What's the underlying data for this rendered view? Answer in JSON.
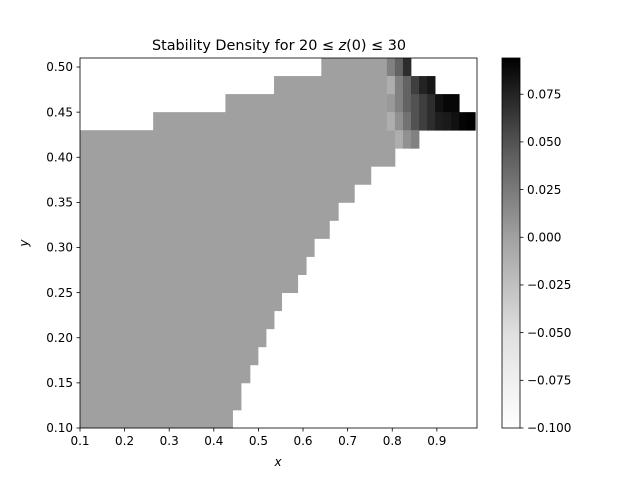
{
  "chart_data": {
    "type": "heatmap",
    "title": "Stability Density for 20 ≤ z(0) ≤ 30",
    "title_parts": {
      "prefix": "Stability Density for 20 ≤ ",
      "var": "z",
      "suffix": "(0) ≤ 30"
    },
    "xlabel": "x",
    "ylabel": "y",
    "xlim": [
      0.1,
      0.99
    ],
    "ylim": [
      0.1,
      0.51
    ],
    "xticks": [
      0.1,
      0.2,
      0.3,
      0.4,
      0.5,
      0.6,
      0.7,
      0.8,
      0.9
    ],
    "xtick_labels": [
      "0.1",
      "0.2",
      "0.3",
      "0.4",
      "0.5",
      "0.6",
      "0.7",
      "0.8",
      "0.9"
    ],
    "yticks": [
      0.1,
      0.15,
      0.2,
      0.25,
      0.3,
      0.35,
      0.4,
      0.45,
      0.5
    ],
    "ytick_labels": [
      "0.10",
      "0.15",
      "0.20",
      "0.25",
      "0.30",
      "0.35",
      "0.40",
      "0.45",
      "0.50"
    ],
    "colormap": "Greys",
    "color_range": [
      -0.1,
      0.094
    ],
    "colorbar_ticks": [
      -0.1,
      -0.075,
      -0.05,
      -0.025,
      0.0,
      0.025,
      0.05,
      0.075
    ],
    "colorbar_tick_labels": [
      "−0.100",
      "−0.075",
      "−0.050",
      "−0.025",
      "0.000",
      "0.025",
      "0.050",
      "0.075"
    ],
    "grid": false,
    "base_region": {
      "value": 0.0,
      "y_rows": [
        0.1,
        0.11,
        0.12,
        0.13,
        0.14,
        0.15,
        0.16,
        0.17,
        0.18,
        0.19,
        0.2,
        0.21,
        0.22,
        0.23,
        0.24,
        0.25,
        0.26,
        0.27,
        0.28,
        0.29,
        0.3,
        0.31,
        0.32,
        0.33,
        0.34,
        0.35,
        0.36,
        0.37,
        0.38,
        0.39,
        0.4,
        0.41,
        0.42,
        0.43,
        0.44,
        0.45,
        0.46,
        0.47,
        0.48,
        0.49,
        0.5
      ],
      "x_start": [
        0.1,
        0.1,
        0.1,
        0.1,
        0.1,
        0.1,
        0.1,
        0.1,
        0.1,
        0.1,
        0.1,
        0.1,
        0.1,
        0.1,
        0.1,
        0.1,
        0.1,
        0.1,
        0.1,
        0.1,
        0.1,
        0.1,
        0.1,
        0.1,
        0.1,
        0.1,
        0.1,
        0.1,
        0.1,
        0.1,
        0.1,
        0.1,
        0.1,
        0.264,
        0.264,
        0.426,
        0.426,
        0.535,
        0.535,
        0.641,
        0.641
      ],
      "x_end": [
        0.442,
        0.442,
        0.461,
        0.461,
        0.461,
        0.481,
        0.481,
        0.499,
        0.499,
        0.517,
        0.517,
        0.535,
        0.535,
        0.552,
        0.552,
        0.588,
        0.588,
        0.607,
        0.607,
        0.625,
        0.625,
        0.659,
        0.659,
        0.679,
        0.679,
        0.715,
        0.715,
        0.752,
        0.752,
        0.806,
        0.806,
        0.806,
        0.806,
        0.788,
        0.788,
        0.788,
        0.788,
        0.788,
        0.788,
        0.788,
        0.788
      ]
    },
    "highlight_cells": [
      {
        "x": 0.788,
        "y": 0.5,
        "v": 0.02
      },
      {
        "x": 0.806,
        "y": 0.5,
        "v": 0.04
      },
      {
        "x": 0.824,
        "y": 0.5,
        "v": 0.07
      },
      {
        "x": 0.788,
        "y": 0.49,
        "v": 0.02
      },
      {
        "x": 0.806,
        "y": 0.49,
        "v": 0.04
      },
      {
        "x": 0.824,
        "y": 0.49,
        "v": 0.07
      },
      {
        "x": 0.788,
        "y": 0.48,
        "v": -0.01
      },
      {
        "x": 0.806,
        "y": 0.48,
        "v": 0.02
      },
      {
        "x": 0.824,
        "y": 0.48,
        "v": 0.04
      },
      {
        "x": 0.842,
        "y": 0.48,
        "v": 0.06
      },
      {
        "x": 0.86,
        "y": 0.48,
        "v": 0.075
      },
      {
        "x": 0.878,
        "y": 0.48,
        "v": 0.082
      },
      {
        "x": 0.788,
        "y": 0.47,
        "v": -0.01
      },
      {
        "x": 0.806,
        "y": 0.47,
        "v": 0.02
      },
      {
        "x": 0.824,
        "y": 0.47,
        "v": 0.04
      },
      {
        "x": 0.842,
        "y": 0.47,
        "v": 0.06
      },
      {
        "x": 0.86,
        "y": 0.47,
        "v": 0.075
      },
      {
        "x": 0.878,
        "y": 0.47,
        "v": 0.082
      },
      {
        "x": 0.788,
        "y": 0.46,
        "v": 0.005
      },
      {
        "x": 0.806,
        "y": 0.46,
        "v": 0.02
      },
      {
        "x": 0.824,
        "y": 0.46,
        "v": 0.04
      },
      {
        "x": 0.842,
        "y": 0.46,
        "v": 0.05
      },
      {
        "x": 0.86,
        "y": 0.46,
        "v": 0.06
      },
      {
        "x": 0.878,
        "y": 0.46,
        "v": 0.07
      },
      {
        "x": 0.896,
        "y": 0.46,
        "v": 0.085
      },
      {
        "x": 0.914,
        "y": 0.46,
        "v": 0.09
      },
      {
        "x": 0.932,
        "y": 0.46,
        "v": 0.09
      },
      {
        "x": 0.788,
        "y": 0.45,
        "v": 0.005
      },
      {
        "x": 0.806,
        "y": 0.45,
        "v": 0.02
      },
      {
        "x": 0.824,
        "y": 0.45,
        "v": 0.04
      },
      {
        "x": 0.842,
        "y": 0.45,
        "v": 0.05
      },
      {
        "x": 0.86,
        "y": 0.45,
        "v": 0.06
      },
      {
        "x": 0.878,
        "y": 0.45,
        "v": 0.07
      },
      {
        "x": 0.896,
        "y": 0.45,
        "v": 0.085
      },
      {
        "x": 0.914,
        "y": 0.45,
        "v": 0.09
      },
      {
        "x": 0.932,
        "y": 0.45,
        "v": 0.09
      },
      {
        "x": 0.788,
        "y": 0.44,
        "v": -0.01
      },
      {
        "x": 0.806,
        "y": 0.44,
        "v": 0.01
      },
      {
        "x": 0.824,
        "y": 0.44,
        "v": 0.03
      },
      {
        "x": 0.842,
        "y": 0.44,
        "v": 0.05
      },
      {
        "x": 0.86,
        "y": 0.44,
        "v": 0.06
      },
      {
        "x": 0.878,
        "y": 0.44,
        "v": 0.07
      },
      {
        "x": 0.896,
        "y": 0.44,
        "v": 0.078
      },
      {
        "x": 0.914,
        "y": 0.44,
        "v": 0.08
      },
      {
        "x": 0.932,
        "y": 0.44,
        "v": 0.085
      },
      {
        "x": 0.95,
        "y": 0.44,
        "v": 0.092
      },
      {
        "x": 0.968,
        "y": 0.44,
        "v": 0.094
      },
      {
        "x": 0.788,
        "y": 0.43,
        "v": -0.01
      },
      {
        "x": 0.806,
        "y": 0.43,
        "v": 0.01
      },
      {
        "x": 0.824,
        "y": 0.43,
        "v": 0.03
      },
      {
        "x": 0.842,
        "y": 0.43,
        "v": 0.05
      },
      {
        "x": 0.86,
        "y": 0.43,
        "v": 0.06
      },
      {
        "x": 0.878,
        "y": 0.43,
        "v": 0.07
      },
      {
        "x": 0.896,
        "y": 0.43,
        "v": 0.078
      },
      {
        "x": 0.914,
        "y": 0.43,
        "v": 0.08
      },
      {
        "x": 0.932,
        "y": 0.43,
        "v": 0.085
      },
      {
        "x": 0.95,
        "y": 0.43,
        "v": 0.092
      },
      {
        "x": 0.968,
        "y": 0.43,
        "v": 0.094
      },
      {
        "x": 0.806,
        "y": 0.42,
        "v": -0.01
      },
      {
        "x": 0.824,
        "y": 0.42,
        "v": 0.01
      },
      {
        "x": 0.842,
        "y": 0.42,
        "v": 0.02
      },
      {
        "x": 0.806,
        "y": 0.41,
        "v": -0.01
      },
      {
        "x": 0.824,
        "y": 0.41,
        "v": 0.01
      },
      {
        "x": 0.842,
        "y": 0.41,
        "v": 0.02
      }
    ]
  }
}
